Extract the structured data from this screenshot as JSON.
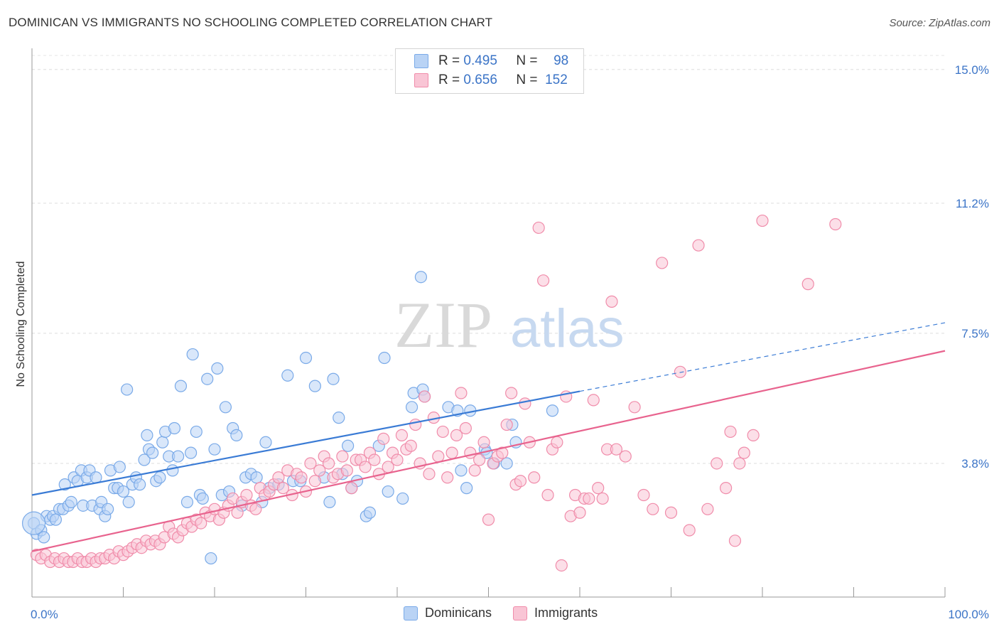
{
  "title": "DOMINICAN VS IMMIGRANTS NO SCHOOLING COMPLETED CORRELATION CHART",
  "source": "Source: ZipAtlas.com",
  "watermark": {
    "zip": "ZIP",
    "atlas": "atlas"
  },
  "legend": {
    "rows": [
      {
        "r_label": "R =",
        "r_value": "0.495",
        "n_label": "N =",
        "n_value": "98",
        "color": "#7aaae8",
        "fill": "#b9d3f5"
      },
      {
        "r_label": "R =",
        "r_value": "0.656",
        "n_label": "N =",
        "n_value": "152",
        "color": "#f08caa",
        "fill": "#f9c5d5"
      }
    ]
  },
  "bottom_legend": [
    {
      "label": "Dominicans",
      "color": "#7aaae8",
      "fill": "#b9d3f5"
    },
    {
      "label": "Immigrants",
      "color": "#f08caa",
      "fill": "#f9c5d5"
    }
  ],
  "chart_data": {
    "type": "scatter",
    "title": "DOMINICAN VS IMMIGRANTS NO SCHOOLING COMPLETED CORRELATION CHART",
    "xlabel": "",
    "ylabel": "No Schooling Completed",
    "xlim": [
      0,
      100
    ],
    "ylim": [
      0,
      15.4
    ],
    "x_tick_labels": [
      "0.0%",
      "100.0%"
    ],
    "y_ticks": [
      3.8,
      7.5,
      11.2,
      15.0
    ],
    "y_tick_labels": [
      "3.8%",
      "7.5%",
      "11.2%",
      "15.0%"
    ],
    "grid": true,
    "legend_position": "top-center",
    "series": [
      {
        "name": "Dominicans",
        "color": "#3a7bd5",
        "point_fill": "#b9d3f5",
        "point_stroke": "#7aaae8",
        "trend": {
          "x0": 0,
          "y0": 2.9,
          "x1": 60,
          "y1": 5.85,
          "dashed_to_x": 100,
          "dashed_to_y": 7.8
        },
        "points": [
          [
            0.2,
            2.1
          ],
          [
            0.5,
            1.8
          ],
          [
            1.0,
            1.9
          ],
          [
            1.3,
            1.7
          ],
          [
            1.6,
            2.3
          ],
          [
            2.0,
            2.2
          ],
          [
            2.3,
            2.3
          ],
          [
            2.6,
            2.2
          ],
          [
            3.0,
            2.5
          ],
          [
            3.4,
            2.5
          ],
          [
            3.6,
            3.2
          ],
          [
            4.0,
            2.6
          ],
          [
            4.3,
            2.7
          ],
          [
            4.6,
            3.4
          ],
          [
            5.0,
            3.3
          ],
          [
            5.4,
            3.6
          ],
          [
            5.6,
            2.6
          ],
          [
            6.0,
            3.4
          ],
          [
            6.3,
            3.6
          ],
          [
            6.6,
            2.6
          ],
          [
            7.0,
            3.4
          ],
          [
            7.4,
            2.5
          ],
          [
            7.6,
            2.7
          ],
          [
            8.0,
            2.3
          ],
          [
            8.3,
            2.5
          ],
          [
            8.6,
            3.6
          ],
          [
            9.0,
            3.1
          ],
          [
            9.4,
            3.1
          ],
          [
            9.6,
            3.7
          ],
          [
            10.0,
            3.0
          ],
          [
            10.4,
            5.9
          ],
          [
            10.6,
            2.7
          ],
          [
            11.0,
            3.2
          ],
          [
            11.4,
            3.4
          ],
          [
            11.8,
            3.2
          ],
          [
            12.3,
            3.9
          ],
          [
            12.6,
            4.6
          ],
          [
            12.8,
            4.2
          ],
          [
            13.2,
            4.1
          ],
          [
            13.6,
            3.3
          ],
          [
            14.0,
            3.4
          ],
          [
            14.3,
            4.4
          ],
          [
            14.6,
            4.7
          ],
          [
            15.0,
            4.0
          ],
          [
            15.4,
            3.6
          ],
          [
            15.6,
            4.8
          ],
          [
            16.0,
            4.0
          ],
          [
            16.3,
            6.0
          ],
          [
            17.0,
            2.7
          ],
          [
            17.4,
            4.1
          ],
          [
            17.6,
            6.9
          ],
          [
            18.0,
            4.7
          ],
          [
            18.4,
            2.9
          ],
          [
            18.7,
            2.8
          ],
          [
            19.2,
            6.2
          ],
          [
            19.6,
            1.1
          ],
          [
            20.0,
            4.2
          ],
          [
            20.3,
            6.5
          ],
          [
            20.8,
            2.9
          ],
          [
            21.2,
            5.4
          ],
          [
            21.6,
            3.0
          ],
          [
            22.0,
            4.8
          ],
          [
            22.4,
            4.6
          ],
          [
            23.0,
            2.6
          ],
          [
            23.4,
            3.4
          ],
          [
            24.0,
            3.5
          ],
          [
            24.6,
            3.4
          ],
          [
            25.2,
            2.7
          ],
          [
            25.6,
            4.4
          ],
          [
            26.0,
            3.1
          ],
          [
            27.0,
            3.2
          ],
          [
            28.0,
            6.3
          ],
          [
            28.6,
            3.3
          ],
          [
            29.4,
            3.3
          ],
          [
            30.0,
            6.8
          ],
          [
            31.0,
            6.0
          ],
          [
            32.0,
            3.4
          ],
          [
            32.6,
            2.7
          ],
          [
            33.0,
            6.2
          ],
          [
            33.6,
            5.1
          ],
          [
            34.0,
            3.5
          ],
          [
            34.6,
            4.3
          ],
          [
            35.0,
            3.1
          ],
          [
            35.6,
            3.3
          ],
          [
            36.6,
            2.3
          ],
          [
            37.0,
            2.4
          ],
          [
            38.0,
            4.3
          ],
          [
            38.6,
            6.8
          ],
          [
            39.0,
            3.0
          ],
          [
            40.6,
            2.8
          ],
          [
            41.6,
            5.4
          ],
          [
            41.8,
            5.8
          ],
          [
            42.6,
            9.1
          ],
          [
            42.8,
            5.9
          ],
          [
            43.0,
            5.7
          ],
          [
            45.6,
            5.4
          ],
          [
            46.6,
            5.3
          ],
          [
            47.0,
            3.6
          ],
          [
            47.6,
            3.1
          ],
          [
            48.0,
            5.3
          ],
          [
            49.6,
            4.2
          ],
          [
            49.8,
            4.1
          ],
          [
            50.6,
            3.8
          ],
          [
            52.0,
            3.8
          ],
          [
            52.6,
            4.9
          ],
          [
            53.0,
            4.4
          ],
          [
            57.0,
            5.3
          ]
        ]
      },
      {
        "name": "Immigrants",
        "color": "#e8638e",
        "point_fill": "#f9c5d5",
        "point_stroke": "#f08caa",
        "trend": {
          "x0": 0,
          "y0": 1.3,
          "x1": 100,
          "y1": 7.0
        },
        "points": [
          [
            0.5,
            1.2
          ],
          [
            1.0,
            1.1
          ],
          [
            1.5,
            1.2
          ],
          [
            2.0,
            1.0
          ],
          [
            2.5,
            1.1
          ],
          [
            3.0,
            1.0
          ],
          [
            3.5,
            1.1
          ],
          [
            4.0,
            1.0
          ],
          [
            4.5,
            1.0
          ],
          [
            5.0,
            1.1
          ],
          [
            5.5,
            1.0
          ],
          [
            6.0,
            1.0
          ],
          [
            6.5,
            1.1
          ],
          [
            7.0,
            1.0
          ],
          [
            7.5,
            1.1
          ],
          [
            8.0,
            1.1
          ],
          [
            8.5,
            1.2
          ],
          [
            9.0,
            1.1
          ],
          [
            9.5,
            1.3
          ],
          [
            10.0,
            1.2
          ],
          [
            10.5,
            1.3
          ],
          [
            11.0,
            1.4
          ],
          [
            11.5,
            1.5
          ],
          [
            12.0,
            1.4
          ],
          [
            12.5,
            1.6
          ],
          [
            13.0,
            1.5
          ],
          [
            13.5,
            1.6
          ],
          [
            14.0,
            1.5
          ],
          [
            14.5,
            1.7
          ],
          [
            15.0,
            2.0
          ],
          [
            15.5,
            1.8
          ],
          [
            16.0,
            1.7
          ],
          [
            16.5,
            1.9
          ],
          [
            17.0,
            2.1
          ],
          [
            17.5,
            2.0
          ],
          [
            18.0,
            2.2
          ],
          [
            18.5,
            2.1
          ],
          [
            19.0,
            2.4
          ],
          [
            19.5,
            2.3
          ],
          [
            20.0,
            2.5
          ],
          [
            20.5,
            2.2
          ],
          [
            21.0,
            2.4
          ],
          [
            21.5,
            2.6
          ],
          [
            22.0,
            2.8
          ],
          [
            22.5,
            2.4
          ],
          [
            23.0,
            2.7
          ],
          [
            23.5,
            2.9
          ],
          [
            24.0,
            2.6
          ],
          [
            24.5,
            2.5
          ],
          [
            25.0,
            3.1
          ],
          [
            25.5,
            2.9
          ],
          [
            26.0,
            3.0
          ],
          [
            26.5,
            3.2
          ],
          [
            27.0,
            3.4
          ],
          [
            27.5,
            3.1
          ],
          [
            28.0,
            3.6
          ],
          [
            28.5,
            2.9
          ],
          [
            29.0,
            3.5
          ],
          [
            29.5,
            3.4
          ],
          [
            30.0,
            3.0
          ],
          [
            30.5,
            3.8
          ],
          [
            31.0,
            3.3
          ],
          [
            31.5,
            3.6
          ],
          [
            32.0,
            4.0
          ],
          [
            32.5,
            3.8
          ],
          [
            33.0,
            3.4
          ],
          [
            33.5,
            3.5
          ],
          [
            34.0,
            4.0
          ],
          [
            34.5,
            3.6
          ],
          [
            35.0,
            3.1
          ],
          [
            35.5,
            3.9
          ],
          [
            36.0,
            3.9
          ],
          [
            36.5,
            3.7
          ],
          [
            37.0,
            4.1
          ],
          [
            37.5,
            3.9
          ],
          [
            38.0,
            3.5
          ],
          [
            38.5,
            4.5
          ],
          [
            39.0,
            3.7
          ],
          [
            39.5,
            4.1
          ],
          [
            40.0,
            3.9
          ],
          [
            40.5,
            4.6
          ],
          [
            41.0,
            4.2
          ],
          [
            41.5,
            4.3
          ],
          [
            42.0,
            4.9
          ],
          [
            42.5,
            3.8
          ],
          [
            43.0,
            5.7
          ],
          [
            43.5,
            3.5
          ],
          [
            44.0,
            5.1
          ],
          [
            44.5,
            4.0
          ],
          [
            45.0,
            4.7
          ],
          [
            45.5,
            3.4
          ],
          [
            46.0,
            4.1
          ],
          [
            46.5,
            4.6
          ],
          [
            47.0,
            5.8
          ],
          [
            47.5,
            4.8
          ],
          [
            48.0,
            4.1
          ],
          [
            48.5,
            3.6
          ],
          [
            49.0,
            3.9
          ],
          [
            49.5,
            4.4
          ],
          [
            50.0,
            2.2
          ],
          [
            50.5,
            3.8
          ],
          [
            51.0,
            4.0
          ],
          [
            51.5,
            4.1
          ],
          [
            52.0,
            4.9
          ],
          [
            52.5,
            5.8
          ],
          [
            53.0,
            3.2
          ],
          [
            53.5,
            3.3
          ],
          [
            54.0,
            5.5
          ],
          [
            54.5,
            4.4
          ],
          [
            55.0,
            3.4
          ],
          [
            55.5,
            10.5
          ],
          [
            56.0,
            9.0
          ],
          [
            56.5,
            2.9
          ],
          [
            57.0,
            4.2
          ],
          [
            57.5,
            4.4
          ],
          [
            58.0,
            0.9
          ],
          [
            58.5,
            5.7
          ],
          [
            59.0,
            2.3
          ],
          [
            59.5,
            2.9
          ],
          [
            60.0,
            2.4
          ],
          [
            60.5,
            2.8
          ],
          [
            61.0,
            2.8
          ],
          [
            61.5,
            5.6
          ],
          [
            62.0,
            3.1
          ],
          [
            62.5,
            2.8
          ],
          [
            63.0,
            4.2
          ],
          [
            63.5,
            8.4
          ],
          [
            64.0,
            4.2
          ],
          [
            65.0,
            4.0
          ],
          [
            66.0,
            5.4
          ],
          [
            67.0,
            2.9
          ],
          [
            68.0,
            2.5
          ],
          [
            69.0,
            9.5
          ],
          [
            70.0,
            2.4
          ],
          [
            71.0,
            6.4
          ],
          [
            72.0,
            1.9
          ],
          [
            73.0,
            10.0
          ],
          [
            74.0,
            2.5
          ],
          [
            75.0,
            3.8
          ],
          [
            76.0,
            3.1
          ],
          [
            76.5,
            4.7
          ],
          [
            77.0,
            1.6
          ],
          [
            77.5,
            3.8
          ],
          [
            78.0,
            4.1
          ],
          [
            79.0,
            4.6
          ],
          [
            80.0,
            10.7
          ],
          [
            85.0,
            8.9
          ],
          [
            88.0,
            10.6
          ]
        ]
      }
    ]
  }
}
